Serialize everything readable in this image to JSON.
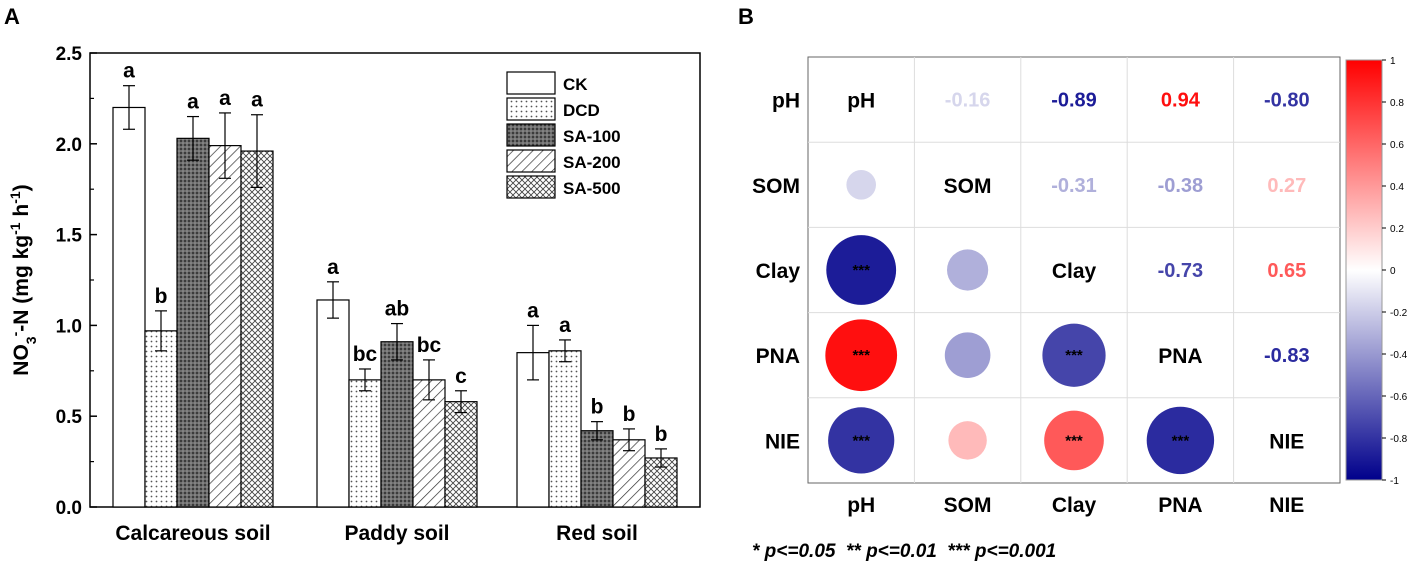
{
  "panels": {
    "a": "A",
    "b": "B"
  },
  "chart_data": [
    {
      "type": "bar",
      "title": "",
      "ylabel": "NO3--N (mg kg-1 h-1)",
      "ylabel_parts": [
        "NO",
        "3",
        "-",
        "-N (mg kg",
        "-1",
        " h",
        "-1",
        ")"
      ],
      "ylim": [
        0,
        2.5
      ],
      "yticks": [
        "0.0",
        "0.5",
        "1.0",
        "1.5",
        "2.0",
        "2.5"
      ],
      "categories": [
        "Calcareous soil",
        "Paddy soil",
        "Red soil"
      ],
      "series": [
        {
          "name": "CK",
          "pattern": "white",
          "values": [
            2.2,
            1.14,
            0.85
          ],
          "errors": [
            0.12,
            0.1,
            0.15
          ],
          "letters": [
            "a",
            "a",
            "a"
          ]
        },
        {
          "name": "DCD",
          "pattern": "dots",
          "values": [
            0.97,
            0.7,
            0.86
          ],
          "errors": [
            0.11,
            0.06,
            0.06
          ],
          "letters": [
            "b",
            "bc",
            "a"
          ]
        },
        {
          "name": "SA-100",
          "pattern": "darkdots",
          "values": [
            2.03,
            0.91,
            0.42
          ],
          "errors": [
            0.12,
            0.1,
            0.05
          ],
          "letters": [
            "a",
            "ab",
            "b"
          ]
        },
        {
          "name": "SA-200",
          "pattern": "diag",
          "values": [
            1.99,
            0.7,
            0.37
          ],
          "errors": [
            0.18,
            0.11,
            0.06
          ],
          "letters": [
            "a",
            "bc",
            "b"
          ]
        },
        {
          "name": "SA-500",
          "pattern": "cross",
          "values": [
            1.96,
            0.58,
            0.27
          ],
          "errors": [
            0.2,
            0.06,
            0.05
          ],
          "letters": [
            "a",
            "c",
            "b"
          ]
        }
      ],
      "legend_position": "top-right"
    },
    {
      "type": "heatmap",
      "variables": [
        "pH",
        "SOM",
        "Clay",
        "PNA",
        "NIE"
      ],
      "upper_values": [
        [
          null,
          "-0.16",
          "-0.89",
          "0.94",
          "-0.80"
        ],
        [
          null,
          null,
          "-0.31",
          "-0.38",
          "0.27"
        ],
        [
          null,
          null,
          null,
          "-0.73",
          "0.65"
        ],
        [
          null,
          null,
          null,
          null,
          "-0.83"
        ]
      ],
      "lower_values": [
        [
          null,
          null,
          null,
          null,
          null
        ],
        [
          -0.16,
          null,
          null,
          null,
          null
        ],
        [
          -0.89,
          -0.31,
          null,
          null,
          null
        ],
        [
          0.94,
          -0.38,
          -0.73,
          null,
          null
        ],
        [
          -0.8,
          0.27,
          0.65,
          -0.83,
          null
        ]
      ],
      "lower_significance": [
        [
          null,
          null,
          null,
          null,
          null
        ],
        [
          "",
          null,
          null,
          null,
          null
        ],
        [
          "***",
          "",
          null,
          null,
          null
        ],
        [
          "***",
          "",
          "***",
          null,
          null
        ],
        [
          "***",
          "",
          "***",
          "***",
          null
        ]
      ],
      "colorbar": {
        "range": [
          -1,
          1
        ],
        "ticks": [
          "1",
          "0.8",
          "0.6",
          "0.4",
          "0.2",
          "0",
          "-0.2",
          "-0.4",
          "-0.6",
          "-0.8",
          "-1"
        ]
      },
      "footnote": "* p<=0.05  ** p<=0.01  *** p<=0.001"
    }
  ]
}
